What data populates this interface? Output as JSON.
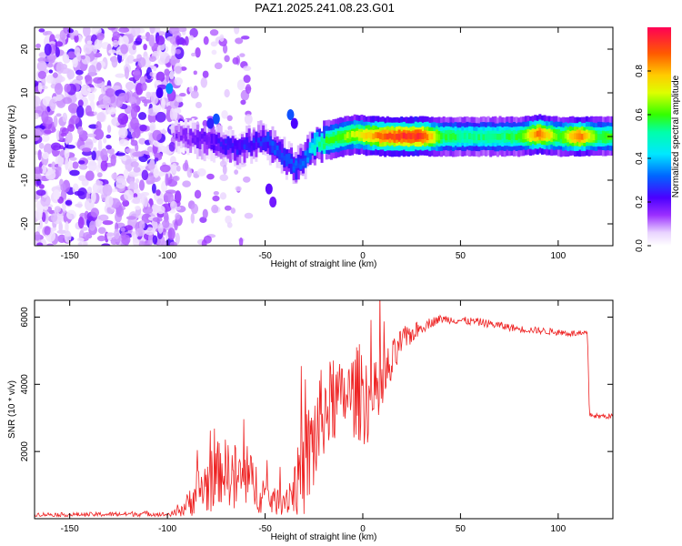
{
  "title": "PAZ1.2025.241.08.23.G01",
  "colors": {
    "snr_line": "#ee2222",
    "frame": "#000000"
  },
  "chart_data": [
    {
      "type": "heatmap",
      "title": "PAZ1.2025.241.08.23.G01",
      "xlabel": "Height of straight line (km)",
      "ylabel": "Frequency (Hz)",
      "xlim": [
        -168,
        128
      ],
      "ylim": [
        -25,
        25
      ],
      "xticks": [
        -150,
        -100,
        -50,
        0,
        50,
        100
      ],
      "xtick_labels": [
        "-150",
        "-100",
        "-50",
        "0",
        "50",
        "100"
      ],
      "yticks": [
        -20,
        -10,
        0,
        10,
        20
      ],
      "ytick_labels": [
        "-20",
        "-10",
        "0",
        "10",
        "20"
      ],
      "colorbar": {
        "label": "Normalized spectral amplitude",
        "range": [
          0,
          1
        ],
        "ticks": [
          0.0,
          0.2,
          0.4,
          0.6,
          0.8
        ],
        "tick_labels": [
          "0.0",
          "0.2",
          "0.4",
          "0.6",
          "0.8"
        ]
      },
      "ridge": {
        "x": [
          -95,
          -90,
          -85,
          -80,
          -75,
          -70,
          -65,
          -60,
          -55,
          -50,
          -45,
          -40,
          -35,
          -30,
          -25,
          -20,
          -15,
          -10,
          -5,
          0,
          10,
          20,
          30,
          40,
          50,
          60,
          70,
          80,
          90,
          100,
          110,
          120,
          128
        ],
        "freq": [
          0,
          0,
          -1,
          -1,
          -2,
          -2,
          -3,
          -2,
          -1,
          -1,
          -3,
          -5,
          -7,
          -5,
          -2,
          -1,
          -0.5,
          0,
          0.5,
          0.3,
          0,
          0,
          0,
          0,
          0,
          0,
          0,
          0,
          0.5,
          0,
          0,
          0,
          0
        ],
        "amplitude": [
          0.15,
          0.15,
          0.2,
          0.2,
          0.22,
          0.25,
          0.25,
          0.25,
          0.25,
          0.3,
          0.3,
          0.3,
          0.3,
          0.35,
          0.5,
          0.6,
          0.6,
          0.65,
          0.7,
          0.75,
          0.9,
          0.95,
          0.95,
          0.6,
          0.55,
          0.55,
          0.55,
          0.6,
          0.9,
          0.6,
          0.9,
          0.6,
          0.6
        ]
      }
    },
    {
      "type": "line",
      "xlabel": "Height of straight line (km)",
      "ylabel": "SNR (10 * v/v)",
      "xlim": [
        -168,
        128
      ],
      "ylim": [
        0,
        6500
      ],
      "xticks": [
        -150,
        -100,
        -50,
        0,
        50,
        100
      ],
      "xtick_labels": [
        "-150",
        "-100",
        "-50",
        "0",
        "50",
        "100"
      ],
      "yticks": [
        2000,
        4000,
        6000
      ],
      "ytick_labels": [
        "2000",
        "4000",
        "6000"
      ],
      "series": [
        {
          "name": "SNR",
          "x": [
            -168,
            -150,
            -130,
            -110,
            -100,
            -95,
            -90,
            -85,
            -80,
            -75,
            -70,
            -65,
            -60,
            -55,
            -50,
            -45,
            -40,
            -35,
            -30,
            -25,
            -20,
            -15,
            -10,
            -5,
            0,
            5,
            10,
            15,
            20,
            25,
            30,
            35,
            40,
            50,
            60,
            70,
            80,
            90,
            100,
            110,
            115,
            116,
            120,
            128
          ],
          "y": [
            130,
            120,
            130,
            150,
            120,
            180,
            400,
            800,
            1000,
            1300,
            1500,
            1100,
            1200,
            1000,
            700,
            500,
            600,
            900,
            1500,
            2300,
            3200,
            3500,
            3600,
            3700,
            3800,
            3400,
            3900,
            4600,
            5300,
            5500,
            5700,
            5850,
            5950,
            5900,
            5850,
            5750,
            5650,
            5600,
            5550,
            5500,
            5500,
            3100,
            3050,
            3050
          ],
          "amp": [
            60,
            60,
            70,
            80,
            60,
            120,
            350,
            700,
            900,
            1000,
            900,
            1200,
            900,
            800,
            600,
            400,
            500,
            800,
            1500,
            1800,
            1400,
            1300,
            1000,
            1300,
            1600,
            1200,
            1100,
            700,
            400,
            300,
            200,
            150,
            120,
            120,
            120,
            120,
            100,
            100,
            100,
            100,
            100,
            80,
            80,
            80
          ]
        }
      ]
    }
  ]
}
